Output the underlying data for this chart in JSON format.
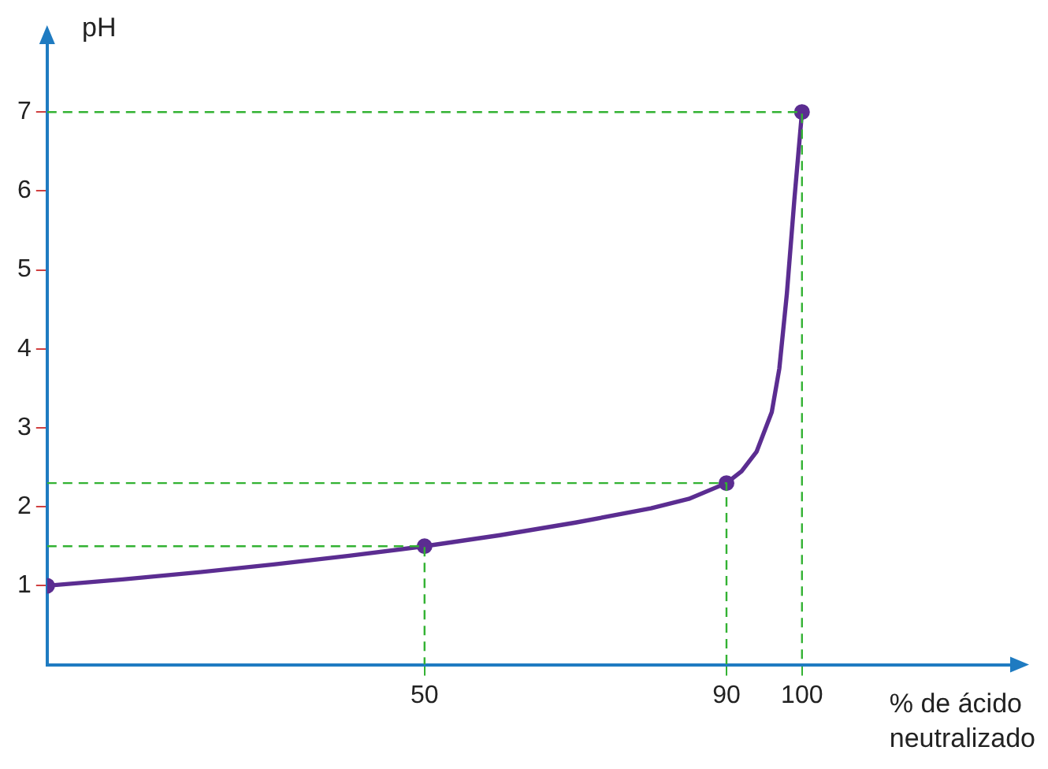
{
  "chart_data": {
    "type": "line",
    "xlabel": "% de ácido\nneutralizado",
    "ylabel": "pH",
    "xlim": [
      0,
      128
    ],
    "ylim": [
      0,
      7.9
    ],
    "xticks": [
      50,
      90,
      100
    ],
    "yticks": [
      1,
      2,
      3,
      4,
      5,
      6,
      7
    ],
    "grid": false,
    "legend": false,
    "series": [
      {
        "color": "#33b233",
        "line_style": "dashed",
        "marker": "none",
        "x": [
          0,
          50,
          50
        ],
        "values": [
          1.5,
          1.5,
          0
        ]
      },
      {
        "color": "#33b233",
        "line_style": "dashed",
        "marker": "none",
        "x": [
          0,
          90,
          90
        ],
        "values": [
          2.3,
          2.3,
          0
        ]
      },
      {
        "color": "#33b233",
        "line_style": "dashed",
        "marker": "none",
        "x": [
          0,
          100,
          100
        ],
        "values": [
          7,
          7,
          0
        ]
      },
      {
        "color": "#5b2d91",
        "line_style": "solid",
        "marker": "none",
        "x": [
          0,
          10,
          20,
          30,
          40,
          50,
          60,
          70,
          80,
          85,
          90,
          92,
          94,
          96,
          97,
          98,
          99,
          100
        ],
        "values": [
          1,
          1.08,
          1.17,
          1.27,
          1.38,
          1.5,
          1.64,
          1.8,
          1.98,
          2.1,
          2.3,
          2.45,
          2.7,
          3.2,
          3.75,
          4.7,
          5.9,
          7
        ]
      },
      {
        "type": "scatter",
        "color": "#5b2d91",
        "marker": "circle",
        "x": [
          0,
          50,
          90,
          100
        ],
        "values": [
          1,
          1.5,
          2.3,
          7
        ]
      }
    ]
  }
}
